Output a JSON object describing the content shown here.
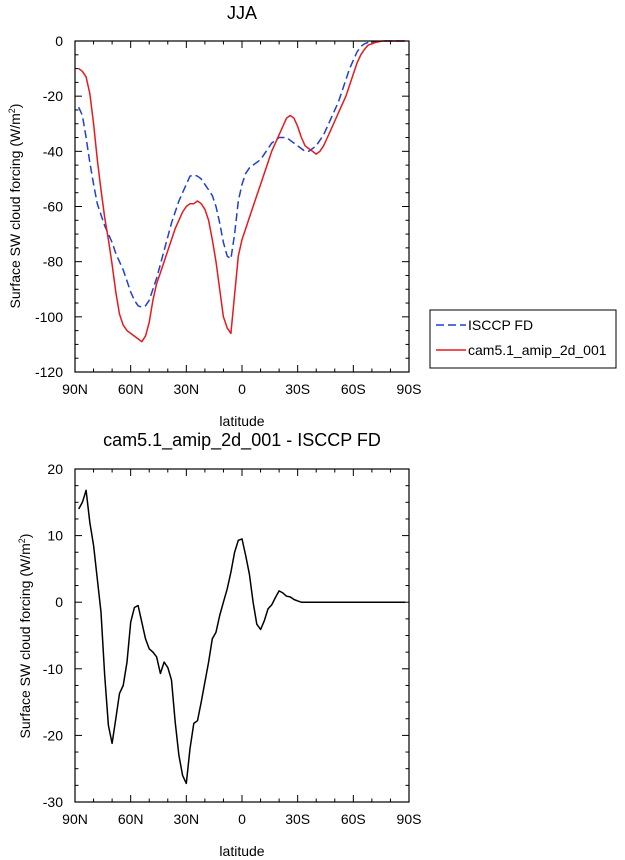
{
  "chart_data": [
    {
      "type": "line",
      "title": "JJA",
      "xlabel": "latitude",
      "ylabel": "Surface SW cloud forcing (W/m²)",
      "ylabel_main": "Surface SW cloud forcing (W/m",
      "ylabel_sup": "2",
      "ylabel_close": ")",
      "xlim": [
        -90,
        90
      ],
      "ylim": [
        -120,
        0
      ],
      "x_ticks": [
        -90,
        -60,
        -30,
        0,
        30,
        60,
        90
      ],
      "x_tick_labels": [
        "90N",
        "60N",
        "30N",
        "0",
        "30S",
        "60S",
        "90S"
      ],
      "y_ticks": [
        0,
        -20,
        -40,
        -60,
        -80,
        -100,
        -120
      ],
      "y_tick_labels": [
        "0",
        "-20",
        "-40",
        "-60",
        "-80",
        "-100",
        "-120"
      ],
      "legend_position": "right",
      "series": [
        {
          "name": "ISCCP FD",
          "color": "#1f3fd6",
          "dash": "dashed",
          "x": [
            -88,
            -86,
            -84,
            -82,
            -80,
            -78,
            -76,
            -74,
            -72,
            -70,
            -68,
            -66,
            -64,
            -62,
            -60,
            -58,
            -56,
            -54,
            -52,
            -50,
            -48,
            -46,
            -44,
            -42,
            -40,
            -38,
            -36,
            -34,
            -32,
            -30,
            -28,
            -26,
            -24,
            -22,
            -20,
            -18,
            -16,
            -14,
            -12,
            -10,
            -8,
            -6,
            -4,
            -2,
            0,
            2,
            4,
            6,
            8,
            10,
            12,
            14,
            16,
            18,
            20,
            22,
            24,
            26,
            28,
            30,
            32,
            34,
            36,
            38,
            40,
            42,
            44,
            46,
            48,
            50,
            52,
            54,
            56,
            58,
            60,
            62,
            64,
            66,
            68,
            70,
            72,
            74,
            76,
            78,
            80,
            82,
            84,
            86,
            88
          ],
          "y": [
            -24,
            -27,
            -35,
            -44,
            -52,
            -59,
            -63,
            -67,
            -70,
            -73,
            -77,
            -80,
            -83,
            -87,
            -91,
            -94,
            -96,
            -96.5,
            -96,
            -94,
            -90,
            -86,
            -81,
            -76,
            -71,
            -66,
            -62,
            -58,
            -55,
            -52,
            -49,
            -48.5,
            -49,
            -50,
            -52,
            -54,
            -56,
            -60,
            -66,
            -73,
            -78,
            -79,
            -70,
            -58,
            -52,
            -48,
            -46,
            -45,
            -44,
            -43,
            -41,
            -39,
            -37,
            -36,
            -35,
            -35,
            -35,
            -36,
            -37,
            -38,
            -39,
            -40,
            -40,
            -39,
            -38,
            -36,
            -34,
            -31,
            -28,
            -25,
            -22,
            -18,
            -14,
            -10,
            -7,
            -4,
            -2,
            -1,
            -0.5,
            -0.3,
            -0.2,
            -0.1,
            0,
            0,
            0,
            0,
            0,
            0,
            0
          ]
        },
        {
          "name": "cam5.1_amip_2d_001",
          "color": "#e8191d",
          "dash": "solid",
          "x": [
            -88,
            -86,
            -84,
            -82,
            -80,
            -78,
            -76,
            -74,
            -72,
            -70,
            -68,
            -66,
            -64,
            -62,
            -60,
            -58,
            -56,
            -54,
            -52,
            -50,
            -48,
            -46,
            -44,
            -42,
            -40,
            -38,
            -36,
            -34,
            -32,
            -30,
            -28,
            -26,
            -24,
            -22,
            -20,
            -18,
            -16,
            -14,
            -12,
            -10,
            -8,
            -6,
            -4,
            -2,
            0,
            2,
            4,
            6,
            8,
            10,
            12,
            14,
            16,
            18,
            20,
            22,
            24,
            26,
            28,
            30,
            32,
            34,
            36,
            38,
            40,
            42,
            44,
            46,
            48,
            50,
            52,
            54,
            56,
            58,
            60,
            62,
            64,
            66,
            68,
            70,
            72,
            74,
            76,
            78,
            80,
            82,
            84,
            86,
            88
          ],
          "y": [
            -10,
            -11,
            -13,
            -19,
            -30,
            -43,
            -54,
            -64,
            -72,
            -81,
            -91,
            -99,
            -103,
            -105,
            -106,
            -107,
            -108,
            -109,
            -107,
            -102,
            -94,
            -88,
            -84,
            -80,
            -76,
            -72,
            -68,
            -65,
            -62,
            -60,
            -59,
            -59,
            -58,
            -59,
            -61,
            -65,
            -72,
            -80,
            -90,
            -100,
            -104,
            -106,
            -92,
            -78,
            -72,
            -68,
            -64,
            -60,
            -56,
            -52,
            -48,
            -44,
            -40,
            -37,
            -34,
            -31,
            -28,
            -27,
            -28,
            -31,
            -35,
            -38,
            -39,
            -40,
            -41,
            -40,
            -38,
            -35,
            -32,
            -29,
            -26,
            -23,
            -20,
            -16,
            -12,
            -8,
            -5,
            -3,
            -1.5,
            -1,
            -0.5,
            -0.2,
            0,
            0,
            0,
            0,
            0,
            0,
            0
          ]
        }
      ]
    },
    {
      "type": "line",
      "title": "cam5.1_amip_2d_001 - ISCCP FD",
      "xlabel": "latitude",
      "ylabel": "Surface SW cloud forcing (W/m²)",
      "ylabel_main": "Surface SW cloud forcing (W/m",
      "ylabel_sup": "2",
      "ylabel_close": ")",
      "xlim": [
        -90,
        90
      ],
      "ylim": [
        -30,
        20
      ],
      "x_ticks": [
        -90,
        -60,
        -30,
        0,
        30,
        60,
        90
      ],
      "x_tick_labels": [
        "90N",
        "60N",
        "30N",
        "0",
        "30S",
        "60S",
        "90S"
      ],
      "y_ticks": [
        20,
        10,
        0,
        -10,
        -20,
        -30
      ],
      "y_tick_labels": [
        "20",
        "10",
        "0",
        "-10",
        "-20",
        "-30"
      ],
      "series": [
        {
          "name": "cam5.1_amip_2d_001 - ISCCP FD",
          "color": "#000000",
          "dash": "solid",
          "x": [
            -88,
            -86,
            -84,
            -82,
            -80,
            -78,
            -76,
            -74,
            -72,
            -70,
            -68,
            -66,
            -64,
            -62,
            -60,
            -58,
            -56,
            -54,
            -52,
            -50,
            -48,
            -46,
            -44,
            -42,
            -40,
            -38,
            -36,
            -34,
            -32,
            -30,
            -28,
            -26,
            -24,
            -22,
            -20,
            -18,
            -16,
            -14,
            -12,
            -10,
            -8,
            -6,
            -4,
            -2,
            0,
            2,
            4,
            6,
            8,
            10,
            12,
            14,
            16,
            18,
            20,
            22,
            24,
            26,
            28,
            30,
            32,
            34,
            36,
            38,
            40,
            42,
            44,
            46,
            48,
            50,
            52,
            54,
            56,
            58,
            60,
            62,
            64,
            66,
            68,
            70,
            72,
            74,
            76,
            78,
            80,
            82,
            84,
            86,
            88
          ],
          "y": [
            14,
            15,
            16.8,
            12,
            8.5,
            3.5,
            -1.5,
            -11,
            -18.5,
            -21.2,
            -17.5,
            -13.7,
            -12.5,
            -9,
            -3,
            -0.8,
            -0.5,
            -3,
            -5.5,
            -7,
            -7.5,
            -8.2,
            -10.7,
            -9,
            -9.8,
            -11.7,
            -18,
            -23,
            -26,
            -27.2,
            -22,
            -18.2,
            -17.8,
            -15,
            -12,
            -9,
            -5.5,
            -4.5,
            -2,
            0,
            2,
            4.5,
            7.5,
            9.3,
            9.5,
            7,
            4.2,
            0,
            -3.3,
            -4.1,
            -2.8,
            -1,
            -0.4,
            0.7,
            1.7,
            1.4,
            0.9,
            0.8,
            0.4,
            0.2,
            0,
            0,
            0,
            0,
            0,
            0,
            0,
            0,
            0,
            0,
            0,
            0,
            0,
            0,
            0,
            0,
            0,
            0,
            0,
            0,
            0,
            0,
            0,
            0,
            0,
            0,
            0,
            0,
            0
          ]
        }
      ]
    }
  ]
}
